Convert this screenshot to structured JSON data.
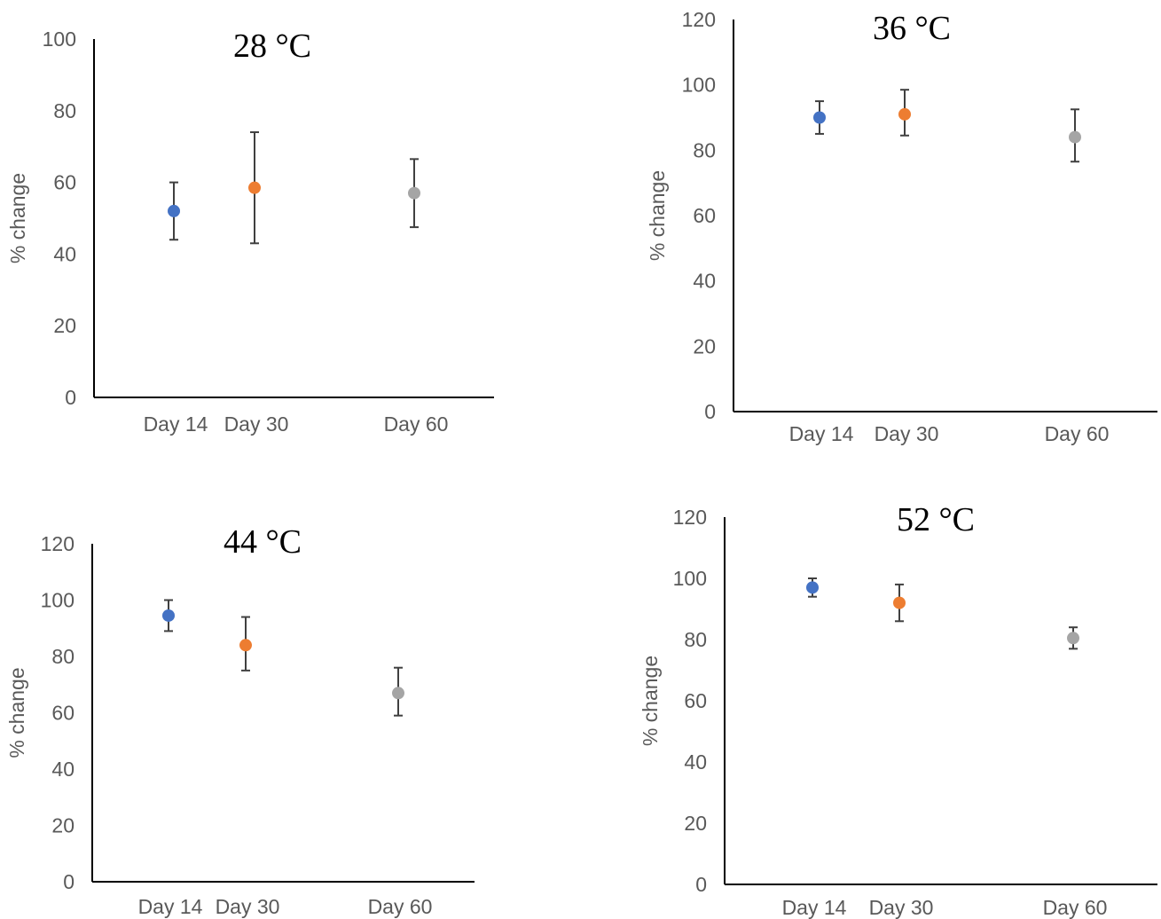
{
  "chart_data": [
    {
      "type": "scatter",
      "title": "28 °C",
      "ylabel": "% change",
      "xlabel": "",
      "ylim": [
        0,
        100
      ],
      "yticks": [
        0,
        20,
        40,
        60,
        80,
        100
      ],
      "categories": [
        "Day 14",
        "Day 30",
        "Day 60"
      ],
      "values": [
        52,
        58.5,
        57
      ],
      "error_low": [
        44,
        43,
        47.5
      ],
      "error_high": [
        60,
        74,
        66.5
      ],
      "colors": [
        "#4472C4",
        "#ED7D31",
        "#A5A5A5"
      ],
      "grid": false
    },
    {
      "type": "scatter",
      "title": "36 °C",
      "ylabel": "% change",
      "xlabel": "",
      "ylim": [
        0,
        120
      ],
      "yticks": [
        0,
        20,
        40,
        60,
        80,
        100,
        120
      ],
      "categories": [
        "Day 14",
        "Day 30",
        "Day 60"
      ],
      "values": [
        90,
        91,
        84
      ],
      "error_low": [
        85,
        84.5,
        76.5
      ],
      "error_high": [
        95,
        98.5,
        92.5
      ],
      "colors": [
        "#4472C4",
        "#ED7D31",
        "#A5A5A5"
      ],
      "grid": false
    },
    {
      "type": "scatter",
      "title": "44 °C",
      "ylabel": "% change",
      "xlabel": "",
      "ylim": [
        0,
        120
      ],
      "yticks": [
        0,
        20,
        40,
        60,
        80,
        100,
        120
      ],
      "categories": [
        "Day 14",
        "Day 30",
        "Day 60"
      ],
      "values": [
        94.5,
        84,
        67
      ],
      "error_low": [
        89,
        75,
        59
      ],
      "error_high": [
        100,
        94,
        76
      ],
      "colors": [
        "#4472C4",
        "#ED7D31",
        "#A5A5A5"
      ],
      "grid": false
    },
    {
      "type": "scatter",
      "title": "52 °C",
      "ylabel": "% change",
      "xlabel": "",
      "ylim": [
        0,
        120
      ],
      "yticks": [
        0,
        20,
        40,
        60,
        80,
        100,
        120
      ],
      "categories": [
        "Day 14",
        "Day 30",
        "Day 60"
      ],
      "values": [
        97,
        92,
        80.5
      ],
      "error_low": [
        94,
        86,
        77
      ],
      "error_high": [
        100,
        98,
        84
      ],
      "colors": [
        "#4472C4",
        "#ED7D31",
        "#A5A5A5"
      ],
      "grid": false
    }
  ]
}
